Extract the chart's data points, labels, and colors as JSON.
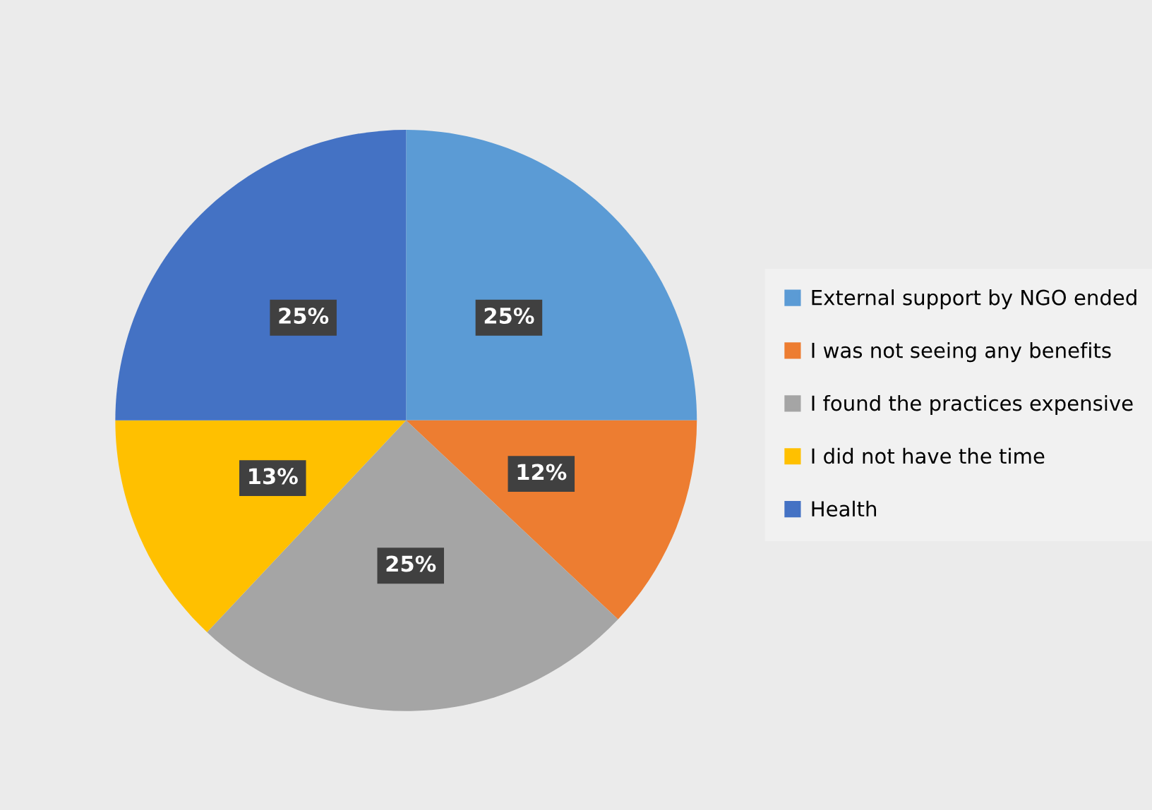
{
  "chart_data": {
    "type": "pie",
    "categories": [
      "External support by NGO ended",
      "I was not seeing any benefits",
      "I found the practices expensive",
      "I did not have the time",
      "Health"
    ],
    "values": [
      25,
      12,
      25,
      13,
      25
    ],
    "colors": [
      "#5b9bd5",
      "#ed7d31",
      "#a5a5a5",
      "#ffc000",
      "#4472c4"
    ],
    "value_labels": [
      "25%",
      "12%",
      "25%",
      "13%",
      "25%"
    ],
    "legend": "right"
  }
}
